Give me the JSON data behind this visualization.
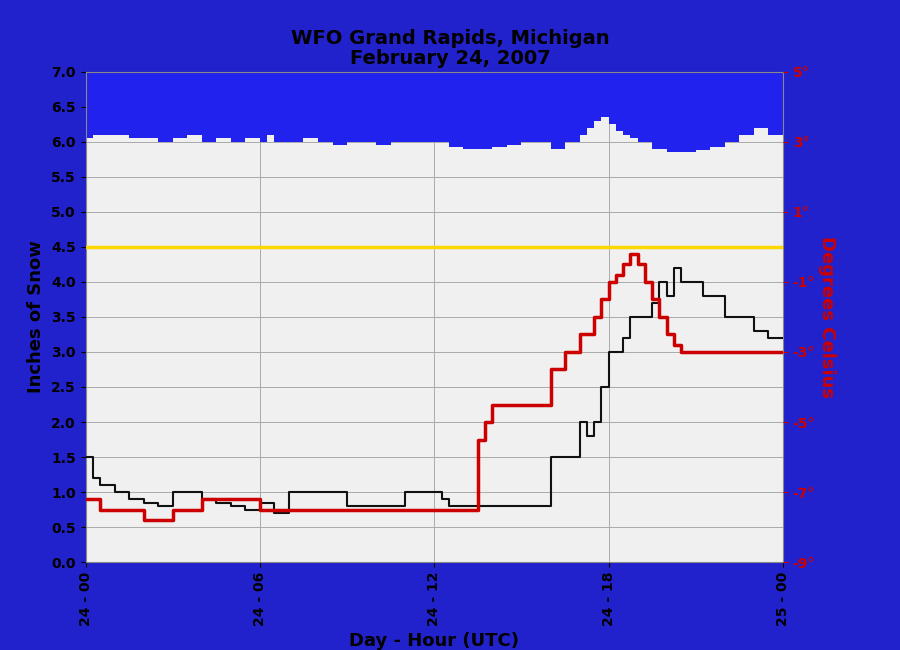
{
  "title_line1": "WFO Grand Rapids, Michigan",
  "title_line2": "February 24, 2007",
  "xlabel": "Day - Hour (UTC)",
  "ylabel_left": "Inches of Snow",
  "ylabel_right": "Degrees Celsius",
  "ylim_left": [
    0.0,
    7.0
  ],
  "ylim_right": [
    -9,
    5
  ],
  "yticks_left": [
    0.0,
    0.5,
    1.0,
    1.5,
    2.0,
    2.5,
    3.0,
    3.5,
    4.0,
    4.5,
    5.0,
    5.5,
    6.0,
    6.5,
    7.0
  ],
  "yticks_right_vals": [
    -9,
    -7,
    -5,
    -3,
    -1,
    1,
    3,
    5
  ],
  "yticks_right_labels": [
    "-9°",
    "-7°",
    "-5°",
    "-3°",
    "-1°",
    "1°",
    "3°",
    "5°"
  ],
  "xtick_positions": [
    0,
    6,
    12,
    18,
    24
  ],
  "xtick_labels": [
    "24 - 00",
    "24 - 06",
    "24 - 12",
    "24 - 18",
    "25 - 00"
  ],
  "yellow_line_y": 4.5,
  "yellow_line_color": "#FFD700",
  "blue_fill_color": "#2222EE",
  "snow_line_color": "#111111",
  "temp_line_color": "#CC0000",
  "background_color": "#F0F0F0",
  "outer_bg": "#2222CC",
  "snow_depth_t": [
    0,
    0.25,
    0.5,
    1.0,
    1.5,
    2.0,
    2.5,
    3.0,
    3.5,
    4.0,
    4.5,
    5.0,
    5.5,
    6.0,
    6.5,
    7.0,
    7.5,
    8.0,
    8.5,
    9.0,
    9.5,
    10.0,
    10.5,
    11.0,
    11.5,
    12.0,
    12.25,
    12.5,
    13.0,
    13.5,
    13.75,
    14.0,
    14.5,
    15.0,
    15.5,
    16.0,
    16.5,
    17.0,
    17.25,
    17.5,
    17.75,
    18.0,
    18.25,
    18.5,
    18.75,
    19.0,
    19.25,
    19.5,
    19.75,
    20.0,
    20.25,
    20.5,
    20.75,
    21.0,
    21.25,
    21.5,
    22.0,
    22.5,
    23.0,
    23.5,
    24.0
  ],
  "snow_depth_v": [
    1.5,
    1.2,
    1.1,
    1.0,
    0.9,
    0.85,
    0.8,
    1.0,
    1.0,
    0.9,
    0.85,
    0.8,
    0.75,
    0.85,
    0.7,
    1.0,
    1.0,
    1.0,
    1.0,
    0.8,
    0.8,
    0.8,
    0.8,
    1.0,
    1.0,
    1.0,
    0.9,
    0.8,
    0.8,
    0.8,
    0.8,
    0.8,
    0.8,
    0.8,
    0.8,
    1.5,
    1.5,
    2.0,
    1.8,
    2.0,
    2.5,
    3.0,
    3.0,
    3.2,
    3.5,
    3.5,
    3.5,
    3.7,
    4.0,
    3.8,
    4.2,
    4.0,
    4.0,
    4.0,
    3.8,
    3.8,
    3.5,
    3.5,
    3.3,
    3.2,
    3.2
  ],
  "blue_sensor_t": [
    0,
    0.25,
    0.5,
    1.0,
    1.5,
    2.0,
    2.5,
    3.0,
    3.5,
    4.0,
    4.5,
    5.0,
    5.5,
    6.0,
    6.25,
    6.5,
    7.0,
    7.5,
    8.0,
    8.5,
    9.0,
    9.5,
    10.0,
    10.5,
    11.0,
    11.5,
    12.0,
    12.5,
    13.0,
    13.5,
    14.0,
    14.5,
    15.0,
    15.5,
    16.0,
    16.5,
    17.0,
    17.25,
    17.5,
    17.75,
    18.0,
    18.25,
    18.5,
    18.75,
    19.0,
    19.5,
    20.0,
    20.5,
    21.0,
    21.5,
    22.0,
    22.5,
    23.0,
    23.5,
    24.0
  ],
  "blue_sensor_v": [
    6.05,
    6.1,
    6.1,
    6.1,
    6.05,
    6.05,
    6.0,
    6.05,
    6.1,
    6.0,
    6.05,
    6.0,
    6.05,
    6.0,
    6.1,
    6.0,
    6.0,
    6.05,
    6.0,
    5.95,
    6.0,
    6.0,
    5.95,
    6.0,
    6.0,
    6.0,
    6.0,
    5.92,
    5.9,
    5.9,
    5.92,
    5.95,
    6.0,
    6.0,
    5.9,
    6.0,
    6.1,
    6.2,
    6.3,
    6.35,
    6.25,
    6.15,
    6.1,
    6.05,
    6.0,
    5.9,
    5.85,
    5.85,
    5.88,
    5.92,
    6.0,
    6.1,
    6.2,
    6.1,
    6.0
  ],
  "temp_t": [
    0,
    0.25,
    0.5,
    1.0,
    1.5,
    2.0,
    2.5,
    3.0,
    3.5,
    4.0,
    4.5,
    5.0,
    5.5,
    6.0,
    6.5,
    7.0,
    7.5,
    8.0,
    8.5,
    9.0,
    9.5,
    10.0,
    10.5,
    11.0,
    11.5,
    12.0,
    12.5,
    13.0,
    13.25,
    13.5,
    13.75,
    14.0,
    14.5,
    15.0,
    15.5,
    16.0,
    16.5,
    17.0,
    17.25,
    17.5,
    17.75,
    18.0,
    18.25,
    18.5,
    18.75,
    19.0,
    19.25,
    19.5,
    19.75,
    20.0,
    20.25,
    20.5,
    20.75,
    21.0,
    21.25,
    21.5,
    22.0,
    22.5,
    23.0,
    23.5,
    24.0
  ],
  "temp_v": [
    -7.2,
    -7.2,
    -7.5,
    -7.5,
    -7.5,
    -7.8,
    -7.8,
    -7.5,
    -7.5,
    -7.2,
    -7.2,
    -7.2,
    -7.2,
    -7.5,
    -7.5,
    -7.5,
    -7.5,
    -7.5,
    -7.5,
    -7.5,
    -7.5,
    -7.5,
    -7.5,
    -7.5,
    -7.5,
    -7.5,
    -7.5,
    -7.5,
    -7.5,
    -5.5,
    -5.0,
    -4.5,
    -4.5,
    -4.5,
    -4.5,
    -3.5,
    -3.0,
    -2.5,
    -2.5,
    -2.0,
    -1.5,
    -1.0,
    -0.8,
    -0.5,
    -0.2,
    -0.5,
    -1.0,
    -1.5,
    -2.0,
    -2.5,
    -2.8,
    -3.0,
    -3.0,
    -3.0,
    -3.0,
    -3.0,
    -3.0,
    -3.0,
    -3.0,
    -3.0,
    -3.0
  ]
}
